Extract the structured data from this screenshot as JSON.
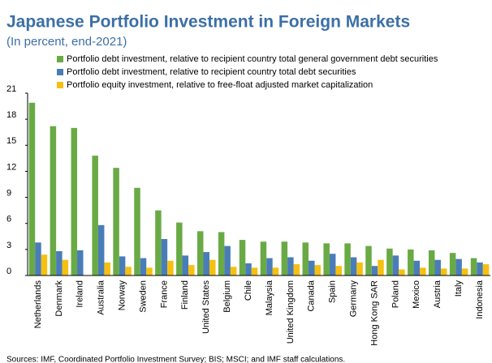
{
  "chart_data": {
    "type": "bar",
    "title": "Japanese Portfolio Investment in Foreign Markets",
    "subtitle": "(In percent, end-2021)",
    "source": "Sources: IMF, Coordinated Portfolio Investment Survey; BIS; MSCI; and IMF staff calculations.",
    "categories": [
      "Netherlands",
      "Denmark",
      "Ireland",
      "Australia",
      "Norway",
      "Sweden",
      "France",
      "Finland",
      "United States",
      "Belgium",
      "Chile",
      "Malaysia",
      "United Kingdom",
      "Canada",
      "Spain",
      "Germany",
      "Hong Kong SAR",
      "Poland",
      "Mexico",
      "Austria",
      "Italy",
      "Indonesia"
    ],
    "series": [
      {
        "name": "Portfolio debt investment, relative to recipient country total general government debt securities",
        "color": "#6aaa45",
        "values": [
          19.9,
          17.2,
          17.0,
          13.8,
          12.4,
          10.1,
          7.5,
          6.1,
          5.1,
          5.0,
          4.1,
          3.9,
          3.9,
          3.8,
          3.7,
          3.7,
          3.4,
          3.1,
          3.0,
          2.9,
          2.6,
          2.0
        ]
      },
      {
        "name": "Portfolio debt investment, relative to recipient country total debt securities",
        "color": "#4a7db8",
        "values": [
          3.8,
          2.8,
          2.9,
          5.8,
          2.2,
          2.0,
          4.2,
          2.3,
          2.7,
          3.4,
          1.4,
          2.0,
          2.1,
          1.7,
          2.5,
          2.1,
          1.1,
          2.3,
          1.7,
          1.8,
          1.9,
          1.5
        ]
      },
      {
        "name": "Portfolio equity investment, relative to free-float adjusted market capitalization",
        "color": "#f5c011",
        "values": [
          2.4,
          1.8,
          null,
          1.5,
          1.0,
          0.9,
          1.7,
          1.2,
          1.8,
          1.0,
          0.9,
          0.9,
          1.3,
          1.2,
          1.1,
          1.5,
          1.8,
          0.7,
          0.9,
          0.8,
          0.8,
          1.3
        ]
      }
    ],
    "ylim": [
      0,
      21
    ],
    "yticks": [
      0,
      3,
      6,
      9,
      12,
      15,
      18,
      21
    ],
    "legend": "top"
  }
}
